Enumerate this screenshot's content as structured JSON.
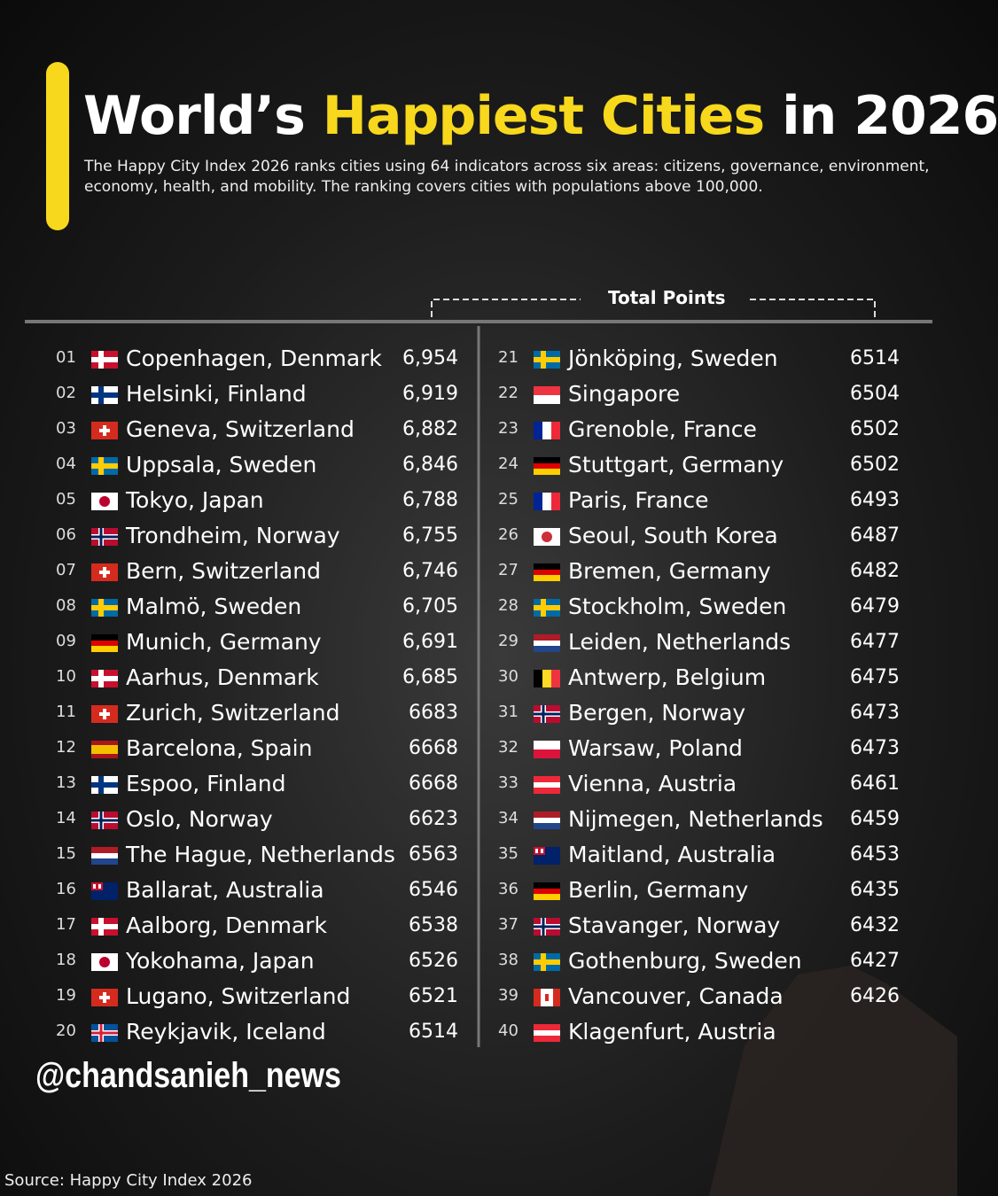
{
  "header": {
    "title_start": "World’s",
    "title_highlight": "Happiest Cities",
    "title_end": "in 2026",
    "subtitle": "The Happy City Index 2026 ranks cities using 64 indicators across six areas: citizens, governance, environment, economy, health, and mobility. The ranking covers cities with populations above 100,000."
  },
  "table": {
    "column_header": "Total Points",
    "rows": [
      {
        "rank": "01",
        "city": "Copenhagen, Denmark",
        "points": "6,954"
      },
      {
        "rank": "02",
        "city": "Helsinki, Finland",
        "points": "6,919"
      },
      {
        "rank": "03",
        "city": "Geneva, Switzerland",
        "points": "6,882"
      },
      {
        "rank": "04",
        "city": "Uppsala, Sweden",
        "points": "6,846"
      },
      {
        "rank": "05",
        "city": "Tokyo, Japan",
        "points": "6,788"
      },
      {
        "rank": "06",
        "city": "Trondheim, Norway",
        "points": "6,755"
      },
      {
        "rank": "07",
        "city": "Bern, Switzerland",
        "points": "6,746"
      },
      {
        "rank": "08",
        "city": "Malmö, Sweden",
        "points": "6,705"
      },
      {
        "rank": "09",
        "city": "Munich, Germany",
        "points": "6,691"
      },
      {
        "rank": "10",
        "city": "Aarhus, Denmark",
        "points": "6,685"
      },
      {
        "rank": "11",
        "city": "Zurich, Switzerland",
        "points": "6683"
      },
      {
        "rank": "12",
        "city": "Barcelona, Spain",
        "points": "6668"
      },
      {
        "rank": "13",
        "city": "Espoo, Finland",
        "points": "6668"
      },
      {
        "rank": "14",
        "city": "Oslo, Norway",
        "points": "6623"
      },
      {
        "rank": "15",
        "city": "The Hague, Netherlands",
        "points": "6563"
      },
      {
        "rank": "16",
        "city": "Ballarat, Australia",
        "points": "6546"
      },
      {
        "rank": "17",
        "city": "Aalborg, Denmark",
        "points": "6538"
      },
      {
        "rank": "18",
        "city": "Yokohama, Japan",
        "points": "6526"
      },
      {
        "rank": "19",
        "city": "Lugano, Switzerland",
        "points": "6521"
      },
      {
        "rank": "20",
        "city": "Reykjavik, Iceland",
        "points": "6514"
      },
      {
        "rank": "21",
        "city": "Jönköping, Sweden",
        "points": "6514"
      },
      {
        "rank": "22",
        "city": "Singapore",
        "points": "6504"
      },
      {
        "rank": "23",
        "city": "Grenoble, France",
        "points": "6502"
      },
      {
        "rank": "24",
        "city": "Stuttgart, Germany",
        "points": "6502"
      },
      {
        "rank": "25",
        "city": "Paris, France",
        "points": "6493"
      },
      {
        "rank": "26",
        "city": "Seoul, South Korea",
        "points": "6487"
      },
      {
        "rank": "27",
        "city": "Bremen, Germany",
        "points": "6482"
      },
      {
        "rank": "28",
        "city": "Stockholm, Sweden",
        "points": "6479"
      },
      {
        "rank": "29",
        "city": "Leiden, Netherlands",
        "points": "6477"
      },
      {
        "rank": "30",
        "city": "Antwerp, Belgium",
        "points": "6475"
      },
      {
        "rank": "31",
        "city": "Bergen, Norway",
        "points": "6473"
      },
      {
        "rank": "32",
        "city": "Warsaw, Poland",
        "points": "6473"
      },
      {
        "rank": "33",
        "city": "Vienna, Austria",
        "points": "6461"
      },
      {
        "rank": "34",
        "city": "Nijmegen, Netherlands",
        "points": "6459"
      },
      {
        "rank": "35",
        "city": "Maitland, Australia",
        "points": "6453"
      },
      {
        "rank": "36",
        "city": "Berlin, Germany",
        "points": "6435"
      },
      {
        "rank": "37",
        "city": "Stavanger, Norway",
        "points": "6432"
      },
      {
        "rank": "38",
        "city": "Gothenburg, Sweden",
        "points": "6427"
      },
      {
        "rank": "39",
        "city": "Vancouver, Canada",
        "points": "6426"
      },
      {
        "rank": "40",
        "city": "Klagenfurt, Austria"
      }
    ]
  },
  "footer": {
    "handle": "@chandsanieh_news",
    "source": "Source: Happy City Index 2026"
  }
}
